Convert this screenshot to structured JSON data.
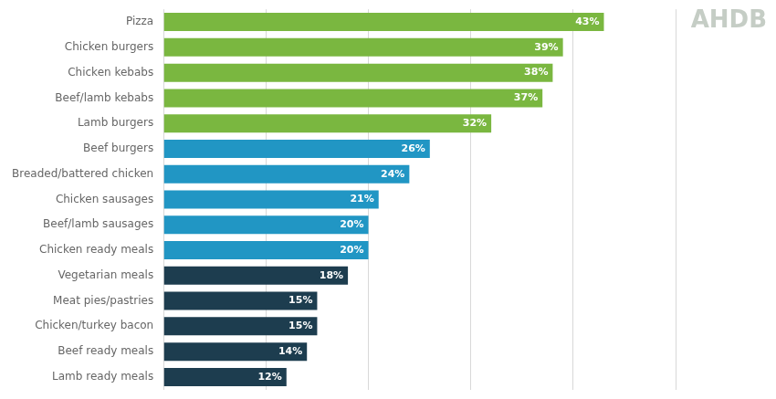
{
  "chart_data": {
    "type": "bar",
    "orientation": "horizontal",
    "categories": [
      "Lamb ready meals",
      "Beef ready meals",
      "Chicken/turkey bacon",
      "Meat pies/pastries",
      "Vegetarian meals",
      "Chicken ready meals",
      "Beef/lamb sausages",
      "Chicken sausages",
      "Breaded/battered chicken",
      "Beef burgers",
      "Lamb burgers",
      "Beef/lamb kebabs",
      "Chicken kebabs",
      "Chicken burgers",
      "Pizza"
    ],
    "values": [
      12,
      14,
      15,
      15,
      18,
      20,
      20,
      21,
      24,
      26,
      32,
      37,
      38,
      39,
      43
    ],
    "value_labels": [
      "12%",
      "14%",
      "15%",
      "15%",
      "18%",
      "20%",
      "20%",
      "21%",
      "24%",
      "26%",
      "32%",
      "37%",
      "38%",
      "39%",
      "43%"
    ],
    "data_labels": true,
    "colors": [
      "#1d3d4f",
      "#1d3d4f",
      "#1d3d4f",
      "#1d3d4f",
      "#1d3d4f",
      "#2196c4",
      "#2196c4",
      "#2196c4",
      "#2196c4",
      "#2196c4",
      "#7ab740",
      "#7ab740",
      "#7ab740",
      "#7ab740",
      "#7ab740"
    ],
    "xlim": [
      0,
      50
    ],
    "xticks": [
      0,
      10,
      20,
      30,
      40,
      50
    ],
    "tick_labels": "y",
    "grid": true,
    "annotations": [
      "AHDB"
    ]
  }
}
